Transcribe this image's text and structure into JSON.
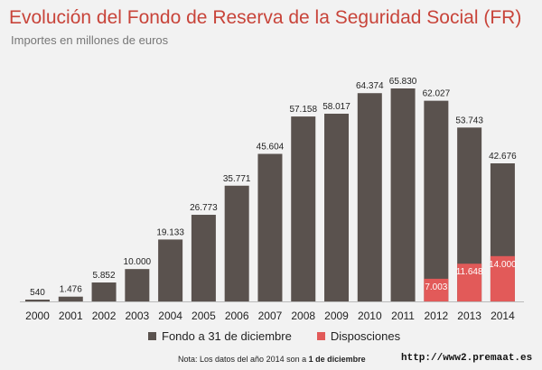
{
  "title": "Evolución del Fondo de Reserva de la Seguridad Social (FR)",
  "subtitle": "Importes en millones de euros",
  "note": {
    "text_before": "Nota: Los datos del año 2014 son a ",
    "text_bold": "1 de diciembre"
  },
  "source_url": "http://www2.premaat.es",
  "colors": {
    "fondo": "#5a524e",
    "disposiciones": "#e25a59",
    "title": "#c8443a"
  },
  "chart_data": {
    "type": "bar",
    "categories": [
      "2000",
      "2001",
      "2002",
      "2003",
      "2004",
      "2005",
      "2006",
      "2007",
      "2008",
      "2009",
      "2010",
      "2011",
      "2012",
      "2013",
      "2014"
    ],
    "series": [
      {
        "name": "Fondo a 31 de diciembre",
        "values": [
          540,
          1476,
          5852,
          10000,
          19133,
          26773,
          35771,
          45604,
          57158,
          58017,
          64374,
          65830,
          62027,
          53743,
          42676
        ],
        "labels": [
          "540",
          "1.476",
          "5.852",
          "10.000",
          "19.133",
          "26.773",
          "35.771",
          "45.604",
          "57.158",
          "58.017",
          "64.374",
          "65.830",
          "62.027",
          "53.743",
          "42.676"
        ]
      },
      {
        "name": "Disposciones",
        "values": [
          null,
          null,
          null,
          null,
          null,
          null,
          null,
          null,
          null,
          null,
          null,
          null,
          7003,
          11648,
          14000
        ],
        "labels": [
          "",
          "",
          "",
          "",
          "",
          "",
          "",
          "",
          "",
          "",
          "",
          "",
          "7.003",
          "11.648",
          "14.000"
        ]
      }
    ],
    "ylim": [
      0,
      70000
    ]
  }
}
